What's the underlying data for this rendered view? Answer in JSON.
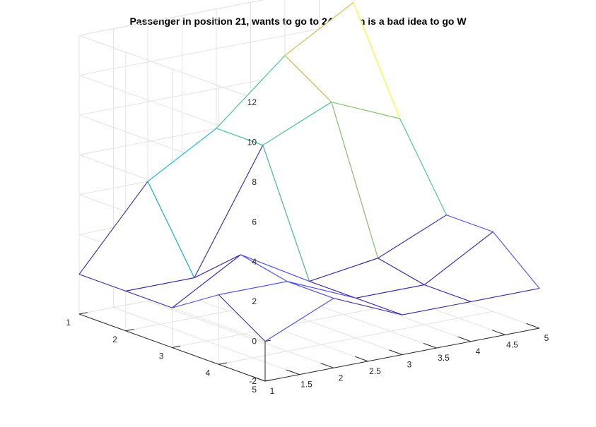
{
  "chart_data": {
    "type": "surface-mesh",
    "title": "Passenger in position 21, wants to go to 24. When is a bad idea to go W",
    "xlabel": "",
    "ylabel": "",
    "zlabel": "",
    "grid": true,
    "x_ticks": [
      "1",
      "1.5",
      "2",
      "2.5",
      "3",
      "3.5",
      "4",
      "4.5",
      "5"
    ],
    "y_ticks": [
      "1",
      "2",
      "3",
      "4",
      "5"
    ],
    "z_ticks": [
      "-2",
      "0",
      "2",
      "4",
      "6",
      "8",
      "10",
      "12"
    ],
    "xlim": [
      1,
      5
    ],
    "ylim": [
      1,
      5
    ],
    "zlim": [
      -2,
      12
    ],
    "x": [
      1,
      2,
      3,
      4,
      5
    ],
    "y": [
      1,
      2,
      3,
      4,
      5
    ],
    "z": [
      [
        0,
        4,
        6,
        9,
        11
      ],
      [
        0,
        0,
        6,
        7.5,
        6
      ],
      [
        0,
        2,
        0,
        0.5,
        2
      ],
      [
        1.5,
        1.5,
        0,
        0,
        2
      ],
      [
        0,
        1.5,
        0,
        0,
        0
      ]
    ],
    "colormap": [
      "#3e26a8",
      "#4a4ff2",
      "#2d8ae8",
      "#10b3d3",
      "#3cc48e",
      "#8bc460",
      "#d2ba4a",
      "#f8fa0d"
    ]
  }
}
